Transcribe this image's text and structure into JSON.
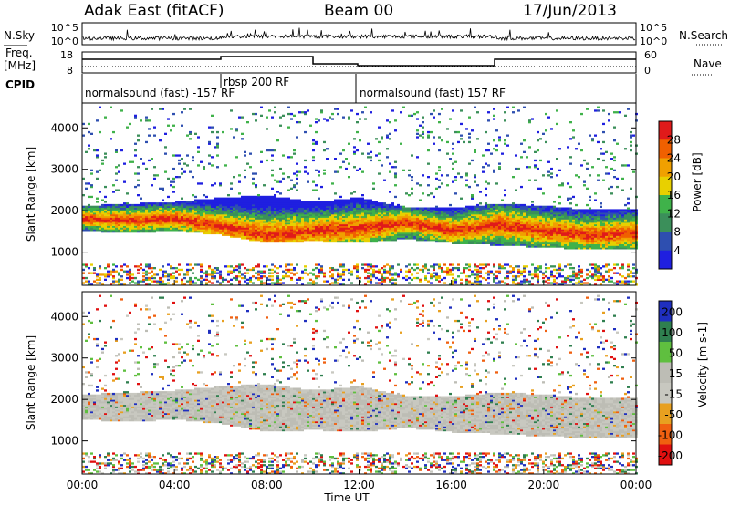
{
  "header": {
    "station": "Adak East (fitACF)",
    "beam": "Beam 00",
    "date": "17/Jun/2013"
  },
  "left_labels": {
    "nsky": "N.Sky",
    "freq_1": "Freq.",
    "freq_2": "[MHz]",
    "cpid": "CPID"
  },
  "right_labels": {
    "nsearch": "N.Search",
    "nave": "Nave"
  },
  "top_axes": {
    "noise_ticks": [
      "10^5",
      "10^0"
    ],
    "freq_ticks": [
      "18",
      "8"
    ],
    "nave_ticks": [
      "60",
      "0"
    ]
  },
  "cpid_segments": [
    {
      "label": "normalsound (fast) -157 RF",
      "start": 0,
      "end": 6
    },
    {
      "label": "rbsp 200 RF",
      "start": 6,
      "end": 12
    },
    {
      "label": "normalsound (fast) 157 RF",
      "start": 12,
      "end": 24
    }
  ],
  "colors": {
    "power_scale": [
      "#1f1fe0",
      "#2e4fb0",
      "#3b8f5a",
      "#3fb24a",
      "#e8d000",
      "#f0a000",
      "#f06000",
      "#e01a1a"
    ],
    "velocity_scale": [
      "#1f2fbf",
      "#2f7f4f",
      "#5fbf3f",
      "#bdbdb5",
      "#c8c8c0",
      "#e8a020",
      "#f06010",
      "#e01010"
    ]
  },
  "chart_data": [
    {
      "type": "heatmap",
      "title": "Power",
      "xlabel": "Time UT",
      "ylabel": "Slant Range [km]",
      "xlim": [
        0,
        24
      ],
      "ylim": [
        200,
        4600
      ],
      "x_ticks": [
        "00:00",
        "04:00",
        "08:00",
        "12:00",
        "16:00",
        "20:00",
        "00:00"
      ],
      "y_ticks": [
        1000,
        2000,
        3000,
        4000
      ],
      "colorbar_label": "Power [dB]",
      "colorbar_ticks": [
        4,
        8,
        12,
        16,
        20,
        24,
        28
      ],
      "echo_band": {
        "hours": [
          0,
          2,
          4,
          6,
          8,
          10,
          12,
          14,
          16,
          18,
          20,
          22,
          24
        ],
        "lower_km": [
          1500,
          1450,
          1500,
          1400,
          1200,
          1250,
          1200,
          1300,
          1200,
          1150,
          1100,
          1050,
          1050
        ],
        "upper_km": [
          2100,
          2150,
          2200,
          2300,
          2350,
          2200,
          2300,
          2050,
          2050,
          2150,
          2100,
          2000,
          2000
        ],
        "peak_km": [
          1800,
          1750,
          1800,
          1600,
          1400,
          1500,
          1550,
          1700,
          1500,
          1650,
          1500,
          1400,
          1450
        ]
      }
    },
    {
      "type": "heatmap",
      "title": "Velocity",
      "xlabel": "Time UT",
      "ylabel": "Slant Range [km]",
      "xlim": [
        0,
        24
      ],
      "ylim": [
        200,
        4600
      ],
      "x_ticks": [
        "00:00",
        "04:00",
        "08:00",
        "12:00",
        "16:00",
        "20:00",
        "00:00"
      ],
      "y_ticks": [
        1000,
        2000,
        3000,
        4000
      ],
      "colorbar_label": "Velocity [m s-1]",
      "colorbar_ticks": [
        200,
        100,
        50,
        15,
        -15,
        -50,
        -100,
        -200
      ]
    }
  ]
}
